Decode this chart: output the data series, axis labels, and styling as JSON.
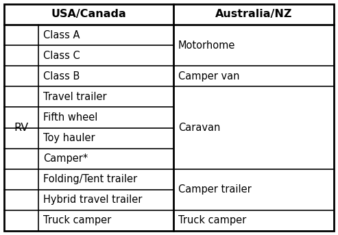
{
  "title_col1": "USA/Canada",
  "title_col2": "Australia/NZ",
  "rv_label": "RV",
  "usa_rows": [
    "Class A",
    "Class C",
    "Class B",
    "Travel trailer",
    "Fifth wheel",
    "Toy hauler",
    "Camper*",
    "Folding/Tent trailer",
    "Hybrid travel trailer",
    "Truck camper"
  ],
  "aus_groups": [
    {
      "label": "Motorhome",
      "start": 0,
      "end": 1
    },
    {
      "label": "Camper van",
      "start": 2,
      "end": 2
    },
    {
      "label": "Caravan",
      "start": 3,
      "end": 6
    },
    {
      "label": "Camper trailer",
      "start": 7,
      "end": 8
    },
    {
      "label": "Truck camper",
      "start": 9,
      "end": 9
    }
  ],
  "border_color": "#000000",
  "text_color": "#000000",
  "header_fontsize": 11.5,
  "cell_fontsize": 10.5,
  "rv_fontsize": 11.5,
  "fig_width": 4.93,
  "fig_height": 3.43,
  "dpi": 100
}
